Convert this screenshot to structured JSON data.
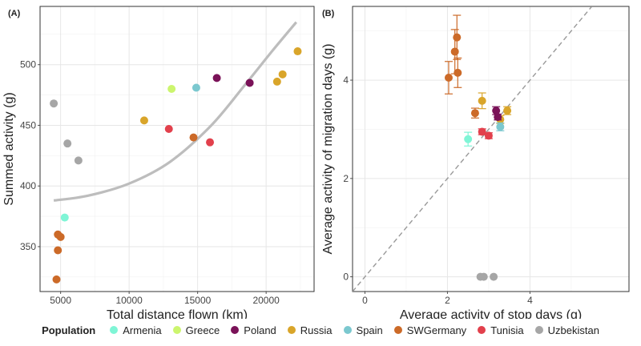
{
  "legend": {
    "title": "Population",
    "entries": [
      {
        "name": "Armenia",
        "color": "#7ff5d6"
      },
      {
        "name": "Greece",
        "color": "#ccf56e"
      },
      {
        "name": "Poland",
        "color": "#7a1258"
      },
      {
        "name": "Russia",
        "color": "#d9a52a"
      },
      {
        "name": "Spain",
        "color": "#7bc8cf"
      },
      {
        "name": "SWGermany",
        "color": "#cc6a28"
      },
      {
        "name": "Tunisia",
        "color": "#e2404c"
      },
      {
        "name": "Uzbekistan",
        "color": "#a6a6a6"
      }
    ]
  },
  "chart_data": [
    {
      "panel": "(A)",
      "type": "scatter",
      "xlabel": "Total distance flown (km)",
      "ylabel": "Summed activity (g)",
      "xlim": [
        3500,
        23500
      ],
      "ylim": [
        313,
        548
      ],
      "xticks": [
        5000,
        10000,
        15000,
        20000
      ],
      "yticks": [
        350,
        400,
        450,
        500
      ],
      "xticklabels": [
        "5000",
        "10000",
        "15000",
        "20000"
      ],
      "yticklabels": [
        "350",
        "400",
        "450",
        "500"
      ],
      "grid": true,
      "trend_curve": {
        "color": "#bdbdbd",
        "points": [
          [
            4500,
            388
          ],
          [
            7000,
            392
          ],
          [
            10000,
            402
          ],
          [
            13000,
            420
          ],
          [
            16000,
            450
          ],
          [
            18500,
            484
          ],
          [
            20500,
            512
          ],
          [
            22200,
            535
          ]
        ]
      },
      "points": [
        {
          "population": "Uzbekistan",
          "x": 4500,
          "y": 468
        },
        {
          "population": "Uzbekistan",
          "x": 5500,
          "y": 435
        },
        {
          "population": "Uzbekistan",
          "x": 6300,
          "y": 421
        },
        {
          "population": "Armenia",
          "x": 5300,
          "y": 374
        },
        {
          "population": "SWGermany",
          "x": 4800,
          "y": 360
        },
        {
          "population": "SWGermany",
          "x": 5000,
          "y": 358
        },
        {
          "population": "SWGermany",
          "x": 4800,
          "y": 347
        },
        {
          "population": "SWGermany",
          "x": 4700,
          "y": 323
        },
        {
          "population": "SWGermany",
          "x": 14700,
          "y": 440
        },
        {
          "population": "Russia",
          "x": 11100,
          "y": 454
        },
        {
          "population": "Russia",
          "x": 20800,
          "y": 486
        },
        {
          "population": "Russia",
          "x": 21200,
          "y": 492
        },
        {
          "population": "Russia",
          "x": 22300,
          "y": 511
        },
        {
          "population": "Greece",
          "x": 13100,
          "y": 480
        },
        {
          "population": "Spain",
          "x": 14900,
          "y": 481
        },
        {
          "population": "Tunisia",
          "x": 12900,
          "y": 447
        },
        {
          "population": "Tunisia",
          "x": 15900,
          "y": 436
        },
        {
          "population": "Poland",
          "x": 16400,
          "y": 489
        },
        {
          "population": "Poland",
          "x": 18800,
          "y": 485
        }
      ]
    },
    {
      "panel": "(B)",
      "type": "scatter",
      "xlabel": "Average activity of stop days (g)",
      "ylabel": "Average activity of migration days (g)",
      "xlim": [
        -0.3,
        6.4
      ],
      "ylim": [
        -0.3,
        5.5
      ],
      "xticks": [
        0,
        2,
        4
      ],
      "yticks": [
        0,
        2,
        4
      ],
      "xticklabels": [
        "0",
        "2",
        "4"
      ],
      "yticklabels": [
        "0",
        "2",
        "4"
      ],
      "grid": true,
      "reference_line": {
        "type": "identity",
        "style": "dashed",
        "color": "#999999"
      },
      "points": [
        {
          "population": "SWGermany",
          "x": 2.03,
          "y": 4.05,
          "err": 0.33
        },
        {
          "population": "SWGermany",
          "x": 2.18,
          "y": 4.58,
          "err": 0.45
        },
        {
          "population": "SWGermany",
          "x": 2.23,
          "y": 4.87,
          "err": 0.45
        },
        {
          "population": "SWGermany",
          "x": 2.25,
          "y": 4.15,
          "err": 0.3
        },
        {
          "population": "SWGermany",
          "x": 2.67,
          "y": 3.33,
          "err": 0.1
        },
        {
          "population": "Russia",
          "x": 2.84,
          "y": 3.58,
          "err": 0.16
        },
        {
          "population": "Russia",
          "x": 3.28,
          "y": 3.2,
          "err": 0.08
        },
        {
          "population": "Russia",
          "x": 3.45,
          "y": 3.38,
          "err": 0.08
        },
        {
          "population": "Poland",
          "x": 3.18,
          "y": 3.38,
          "err": 0.08
        },
        {
          "population": "Poland",
          "x": 3.22,
          "y": 3.25,
          "err": 0.06
        },
        {
          "population": "Spain",
          "x": 3.28,
          "y": 3.05,
          "err": 0.08
        },
        {
          "population": "Armenia",
          "x": 2.5,
          "y": 2.8,
          "err": 0.14
        },
        {
          "population": "Tunisia",
          "x": 2.84,
          "y": 2.95,
          "err": 0.06
        },
        {
          "population": "Tunisia",
          "x": 3.0,
          "y": 2.87,
          "err": 0.06
        },
        {
          "population": "Uzbekistan",
          "x": 2.8,
          "y": 0.0,
          "err": 0
        },
        {
          "population": "Uzbekistan",
          "x": 2.88,
          "y": 0.0,
          "err": 0
        },
        {
          "population": "Uzbekistan",
          "x": 3.12,
          "y": 0.0,
          "err": 0
        }
      ]
    }
  ]
}
